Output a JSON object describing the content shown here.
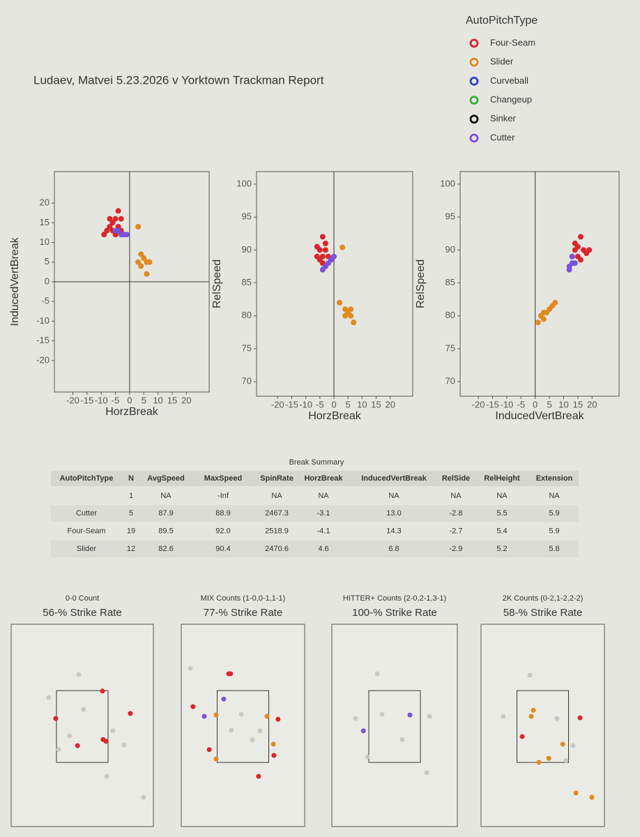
{
  "title": "Ludaev, Matvei 5.23.2026 v Yorktown Trackman Report",
  "legend": {
    "title": "AutoPitchType",
    "items": [
      {
        "name": "Four-Seam",
        "color": "#d8262b"
      },
      {
        "name": "Slider",
        "color": "#e08a1e"
      },
      {
        "name": "Curveball",
        "color": "#2c3fc9"
      },
      {
        "name": "Changeup",
        "color": "#3aae3a"
      },
      {
        "name": "Sinker",
        "color": "#111111"
      },
      {
        "name": "Cutter",
        "color": "#7b52d9"
      }
    ]
  },
  "table": {
    "title": "Break Summary",
    "header": [
      "AutoPitchType",
      "N",
      "AvgSpeed",
      "MaxSpeed",
      "SpinRate",
      "HorzBreak",
      "InducedVertBreak",
      "RelSide",
      "RelHeight",
      "Extension"
    ],
    "rows": [
      [
        "",
        "1",
        "NA",
        "-Inf",
        "NA",
        "NA",
        "NA",
        "NA",
        "NA",
        "NA"
      ],
      [
        "Cutter",
        "5",
        "87.9",
        "88.9",
        "2467.3",
        "-3.1",
        "13.0",
        "-2.8",
        "5.5",
        "5.9"
      ],
      [
        "Four-Seam",
        "19",
        "89.5",
        "92.0",
        "2518.9",
        "-4.1",
        "14.3",
        "-2.7",
        "5.4",
        "5.9"
      ],
      [
        "Slider",
        "12",
        "82.6",
        "90.4",
        "2470.6",
        "4.6",
        "6.8",
        "-2.9",
        "5.2",
        "5.8"
      ]
    ]
  },
  "chart_data": [
    {
      "type": "scatter",
      "x_label": "HorzBreak",
      "y_label": "InducedVertBreak",
      "xlim": [
        -26.5,
        28
      ],
      "ylim": [
        -28,
        28
      ],
      "xticks": [
        -20,
        -15,
        -10,
        -5,
        0,
        5,
        10,
        15,
        20
      ],
      "yticks": [
        -20,
        -15,
        -10,
        -5,
        0,
        5,
        10,
        15,
        20
      ],
      "zero_lines": [
        "x",
        "y"
      ],
      "series": [
        {
          "color": "#d8262b",
          "x": [
            -4,
            -5,
            -6,
            -7,
            -8,
            -6,
            -4,
            -3,
            -9,
            -5,
            -3,
            -7
          ],
          "values": [
            18,
            16,
            15,
            14,
            13,
            13,
            14,
            16,
            12,
            12,
            13,
            16
          ]
        },
        {
          "color": "#e08a1e",
          "x": [
            3,
            4,
            5,
            6,
            4,
            7,
            6,
            3
          ],
          "values": [
            14,
            7,
            6,
            5,
            4,
            5,
            2,
            5
          ]
        },
        {
          "color": "#7b52d9",
          "x": [
            -3,
            -4,
            -2,
            -5,
            -1
          ],
          "values": [
            12,
            13,
            12,
            13,
            12
          ]
        }
      ]
    },
    {
      "type": "scatter",
      "x_label": "HorzBreak",
      "y_label": "RelSpeed",
      "xlim": [
        -27.5,
        28
      ],
      "ylim": [
        67.8,
        101.9
      ],
      "xticks": [
        -20,
        -15,
        -10,
        -5,
        0,
        5,
        10,
        15,
        20
      ],
      "yticks": [
        70,
        75,
        80,
        85,
        90,
        95,
        100
      ],
      "zero_lines": [
        "x"
      ],
      "series": [
        {
          "color": "#d8262b",
          "x": [
            -4,
            -5,
            -3,
            -6,
            -4,
            -2,
            -5,
            -3,
            -6,
            -4
          ],
          "values": [
            92,
            90,
            90,
            89,
            89,
            89,
            88.5,
            91,
            90.5,
            88
          ]
        },
        {
          "color": "#e08a1e",
          "x": [
            3,
            2,
            4,
            5,
            6,
            7,
            6,
            4
          ],
          "values": [
            90.4,
            82,
            81,
            80.5,
            80,
            79,
            81,
            80
          ]
        },
        {
          "color": "#7b52d9",
          "x": [
            -3,
            -2,
            -1,
            -4,
            0
          ],
          "values": [
            87.5,
            88,
            88.5,
            87,
            89
          ]
        }
      ]
    },
    {
      "type": "scatter",
      "x_label": "InducedVertBreak",
      "y_label": "RelSpeed",
      "xlim": [
        -26.4,
        29.5
      ],
      "ylim": [
        67.8,
        101.9
      ],
      "xticks": [
        -20,
        -15,
        -10,
        -5,
        0,
        5,
        10,
        15,
        20
      ],
      "yticks": [
        70,
        75,
        80,
        85,
        90,
        95,
        100
      ],
      "zero_lines": [
        "x"
      ],
      "series": [
        {
          "color": "#d8262b",
          "x": [
            16,
            14,
            15,
            17,
            18,
            13,
            15,
            19,
            16,
            14
          ],
          "values": [
            92,
            90,
            89,
            90,
            89.5,
            89,
            90.5,
            90,
            88.5,
            91
          ]
        },
        {
          "color": "#e08a1e",
          "x": [
            2,
            3,
            4,
            5,
            6,
            7,
            1,
            3
          ],
          "values": [
            80,
            79.5,
            80.5,
            81,
            81.5,
            82,
            79,
            80.5
          ]
        },
        {
          "color": "#7b52d9",
          "x": [
            12,
            13,
            12,
            13,
            14
          ],
          "values": [
            87,
            88,
            87.5,
            89,
            88
          ]
        }
      ]
    },
    {
      "type": "zone",
      "title": "0-0 Count",
      "subtitle": "56-% Strike Rate",
      "xlim": [
        -2.25,
        2.25
      ],
      "ylim": [
        -0.3,
        5.3
      ],
      "series": [
        {
          "color": "#c8c8c8",
          "x": [
            -0.11,
            -1.06,
            0.04,
            -0.4,
            0.97,
            1.32,
            0.77,
            1.94,
            -0.75
          ],
          "values": [
            3.91,
            3.27,
            2.94,
            2.21,
            2.35,
            1.96,
            1.09,
            0.51,
            1.83
          ]
        },
        {
          "color": "#d8262b",
          "x": [
            0.64,
            1.52,
            -0.84,
            -0.15,
            0.66,
            0.75
          ],
          "values": [
            3.45,
            2.83,
            2.69,
            1.94,
            2.11,
            2.06
          ]
        }
      ]
    },
    {
      "type": "zone",
      "title": "MIX Counts (1-0,0-1,1-1)",
      "subtitle": "77-% Strike Rate",
      "xlim": [
        -2.25,
        2.25
      ],
      "ylim": [
        -0.3,
        5.3
      ],
      "series": [
        {
          "color": "#c8c8c8",
          "x": [
            -1.92,
            -0.06,
            -0.42,
            0.34,
            0.62
          ],
          "values": [
            4.08,
            2.81,
            2.37,
            2.1,
            2.35
          ]
        },
        {
          "color": "#d8262b",
          "x": [
            -0.52,
            -0.45,
            -1.82,
            1.28,
            -1.23,
            1.13,
            0.57
          ],
          "values": [
            3.93,
            3.93,
            3.02,
            2.67,
            1.83,
            1.67,
            1.09
          ]
        },
        {
          "color": "#e08a1e",
          "x": [
            -0.98,
            0.88,
            1.11,
            -0.98
          ],
          "values": [
            2.79,
            2.75,
            1.98,
            1.57
          ]
        },
        {
          "color": "#7b52d9",
          "x": [
            -0.7,
            -1.41
          ],
          "values": [
            3.23,
            2.75
          ]
        }
      ]
    },
    {
      "type": "zone",
      "title": "HITTER+ Counts (2-0,2-1,3-1)",
      "subtitle": "100-% Strike Rate",
      "xlim": [
        -2.25,
        2.25
      ],
      "ylim": [
        -0.3,
        5.3
      ],
      "series": [
        {
          "color": "#c8c8c8",
          "x": [
            -0.62,
            -1.4,
            -0.45,
            0.27,
            1.25,
            1.15,
            -0.97
          ],
          "values": [
            3.93,
            2.69,
            2.81,
            2.11,
            2.75,
            1.19,
            1.63
          ]
        },
        {
          "color": "#7b52d9",
          "x": [
            0.55,
            -1.12
          ],
          "values": [
            2.79,
            2.35
          ]
        }
      ]
    },
    {
      "type": "zone",
      "title": "2K Counts (0-2,1-2,2-2)",
      "subtitle": "58-% Strike Rate",
      "xlim": [
        -2.25,
        2.25
      ],
      "ylim": [
        -0.3,
        5.3
      ],
      "series": [
        {
          "color": "#c8c8c8",
          "x": [
            -0.47,
            -1.44,
            0.52,
            1.1,
            0.85
          ],
          "values": [
            3.89,
            2.75,
            2.69,
            1.94,
            1.53
          ]
        },
        {
          "color": "#d8262b",
          "x": [
            1.36,
            -0.75
          ],
          "values": [
            2.71,
            2.19
          ]
        },
        {
          "color": "#e08a1e",
          "x": [
            -0.34,
            -0.42,
            0.73,
            0.22,
            -0.14,
            1.21,
            1.79
          ],
          "values": [
            2.92,
            2.75,
            1.98,
            1.59,
            1.48,
            0.63,
            0.51
          ]
        }
      ]
    }
  ]
}
